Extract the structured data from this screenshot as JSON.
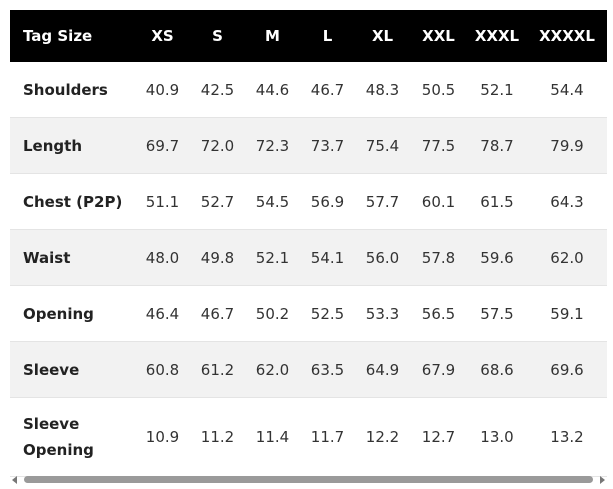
{
  "table": {
    "header": [
      "Tag Size",
      "XS",
      "S",
      "M",
      "L",
      "XL",
      "XXL",
      "XXXL",
      "XXXXL"
    ],
    "rows": [
      [
        "Shoulders",
        "40.9",
        "42.5",
        "44.6",
        "46.7",
        "48.3",
        "50.5",
        "52.1",
        "54.4"
      ],
      [
        "Length",
        "69.7",
        "72.0",
        "72.3",
        "73.7",
        "75.4",
        "77.5",
        "78.7",
        "79.9"
      ],
      [
        "Chest (P2P)",
        "51.1",
        "52.7",
        "54.5",
        "56.9",
        "57.7",
        "60.1",
        "61.5",
        "64.3"
      ],
      [
        "Waist",
        "48.0",
        "49.8",
        "52.1",
        "54.1",
        "56.0",
        "57.8",
        "59.6",
        "62.0"
      ],
      [
        "Opening",
        "46.4",
        "46.7",
        "50.2",
        "52.5",
        "53.3",
        "56.5",
        "57.5",
        "59.1"
      ],
      [
        "Sleeve",
        "60.8",
        "61.2",
        "62.0",
        "63.5",
        "64.9",
        "67.9",
        "68.6",
        "69.6"
      ],
      [
        "Sleeve Opening",
        "10.9",
        "11.2",
        "11.4",
        "11.7",
        "12.2",
        "12.7",
        "13.0",
        "13.2"
      ]
    ]
  }
}
